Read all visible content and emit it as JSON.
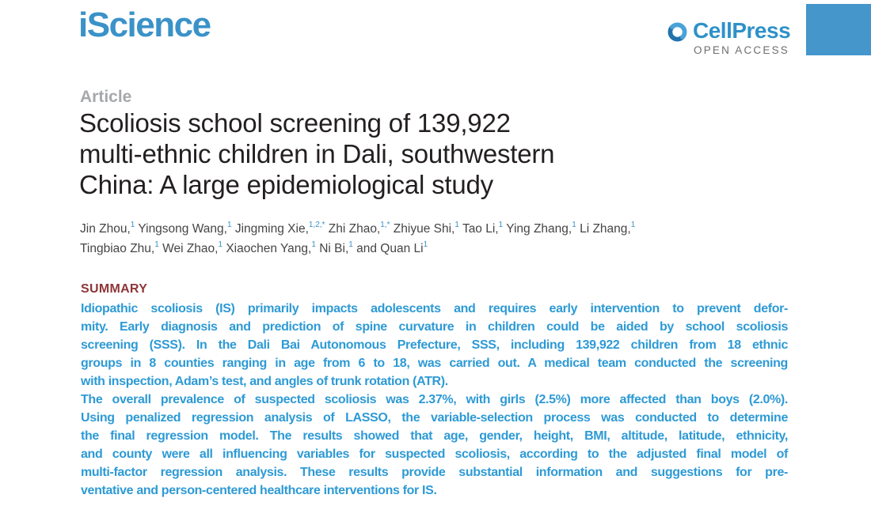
{
  "journal": {
    "name": "iScience",
    "publisher": "CellPress",
    "access_label": "OPEN ACCESS"
  },
  "article": {
    "kicker": "Article",
    "title_lines": [
      "Scoliosis school screening of 139,922",
      "multi-ethnic children in Dali, southwestern",
      "China: A large epidemiological study"
    ],
    "author_lines": [
      [
        {
          "name": "Jin Zhou,",
          "sup": "1"
        },
        {
          "name": "Yingsong Wang,",
          "sup": "1"
        },
        {
          "name": "Jingming Xie,",
          "sup": "1,2,*"
        },
        {
          "name": "Zhi Zhao,",
          "sup": "1,*"
        },
        {
          "name": "Zhiyue Shi,",
          "sup": "1"
        },
        {
          "name": "Tao Li,",
          "sup": "1"
        },
        {
          "name": "Ying Zhang,",
          "sup": "1"
        },
        {
          "name": "Li Zhang,",
          "sup": "1"
        }
      ],
      [
        {
          "name": "Tingbiao Zhu,",
          "sup": "1"
        },
        {
          "name": "Wei Zhao,",
          "sup": "1"
        },
        {
          "name": "Xiaochen Yang,",
          "sup": "1"
        },
        {
          "name": "Ni Bi,",
          "sup": "1"
        },
        {
          "name": "and Quan Li",
          "sup": "1"
        }
      ]
    ]
  },
  "summary": {
    "heading": "SUMMARY",
    "lines": [
      {
        "text": "Idiopathic scoliosis (IS) primarily impacts adolescents and requires early intervention to prevent defor-",
        "justify": true
      },
      {
        "text": "mity. Early diagnosis and prediction of spine curvature in children could be aided by school scoliosis",
        "justify": true
      },
      {
        "text": "screening (SSS). In the Dali Bai Autonomous Prefecture, SSS, including 139,922 children from 18 ethnic",
        "justify": true
      },
      {
        "text": "groups in 8 counties ranging in age from 6 to 18, was carried out. A medical team conducted the screening",
        "justify": true
      },
      {
        "text": "with inspection, Adam’s test, and angles of trunk rotation (ATR).",
        "justify": false
      },
      {
        "text": "The overall prevalence of suspected scoliosis was 2.37%, with girls (2.5%) more affected than boys (2.0%).",
        "justify": true
      },
      {
        "text": "Using penalized regression analysis of LASSO, the variable-selection process was conducted to determine",
        "justify": true
      },
      {
        "text": "the final regression model. The results showed that age, gender, height, BMI, altitude, latitude, ethnicity,",
        "justify": true
      },
      {
        "text": "and county were all influencing variables for suspected scoliosis, according to the adjusted final model of",
        "justify": true
      },
      {
        "text": "multi-factor regression analysis. These results provide substantial information and suggestions for pre-",
        "justify": true
      },
      {
        "text": "ventative and person-centered healthcare interventions for IS.",
        "justify": false
      }
    ]
  },
  "colors": {
    "brand_blue": "#3a92c8",
    "cellpress_blue": "#2e91c8",
    "logo_dark_blue": "#2272ae",
    "logo_light_blue": "#4aa3d8",
    "corner_rect_blue": "#4496cb",
    "summary_heading_red": "#8e3538",
    "summary_text_blue": "#2d9ad5",
    "kicker_gray": "#a6a8ab",
    "open_access_gray": "#6d6e71",
    "title_color": "#231f20",
    "author_color": "#454547"
  }
}
